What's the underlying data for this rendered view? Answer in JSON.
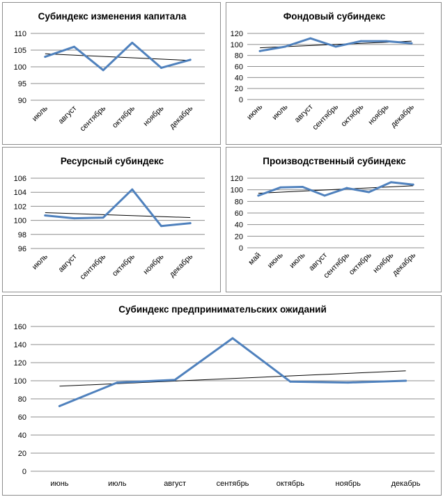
{
  "chart_data": [
    {
      "id": "c1",
      "type": "line",
      "title": "Субиндекс изменения капитала",
      "categories": [
        "июль",
        "август",
        "сентябрь",
        "октябрь",
        "ноябрь",
        "декабрь"
      ],
      "series": [
        {
          "name": "Субиндекс изменения капитала",
          "values": [
            103,
            106,
            99,
            107.2,
            99.7,
            102.1
          ]
        }
      ],
      "trendline": [
        103.9,
        101.9
      ],
      "ylim": [
        90,
        110
      ],
      "yticks": [
        90,
        95,
        100,
        105,
        110
      ],
      "xlabel": "",
      "ylabel": "",
      "grid": true,
      "legend": "none"
    },
    {
      "id": "c2",
      "type": "line",
      "title": "Фондовый субиндекс",
      "categories": [
        "июнь",
        "июль",
        "август",
        "сентябрь",
        "октябрь",
        "ноябрь",
        "декабрь"
      ],
      "series": [
        {
          "name": "Фондовый субиндекс",
          "values": [
            88,
            96,
            111,
            96,
            106,
            106,
            102
          ]
        }
      ],
      "trendline": [
        94,
        106
      ],
      "ylim": [
        0,
        120
      ],
      "yticks": [
        0,
        20,
        40,
        60,
        80,
        100,
        120
      ],
      "xlabel": "",
      "ylabel": "",
      "grid": true,
      "legend": "none"
    },
    {
      "id": "c3",
      "type": "line",
      "title": "Ресурсный субиндекс",
      "categories": [
        "июль",
        "август",
        "сентябрь",
        "октябрь",
        "ноябрь",
        "декабрь"
      ],
      "series": [
        {
          "name": "Ресурсный субиндекс",
          "values": [
            100.7,
            100.3,
            100.4,
            104.4,
            99.2,
            99.6
          ]
        }
      ],
      "trendline": [
        101.1,
        100.4
      ],
      "ylim": [
        96,
        106
      ],
      "yticks": [
        96,
        98,
        100,
        102,
        104,
        106
      ],
      "xlabel": "",
      "ylabel": "",
      "grid": true,
      "legend": "none"
    },
    {
      "id": "c4",
      "type": "line",
      "title": "Производственный субиндекс",
      "categories": [
        "май",
        "июнь",
        "июль",
        "август",
        "сентябрь",
        "октябрь",
        "ноябрь",
        "декабрь"
      ],
      "series": [
        {
          "name": "Производственный субиндекс",
          "values": [
            90,
            104,
            105,
            90,
            103,
            96,
            113,
            109
          ]
        }
      ],
      "trendline": [
        94,
        107
      ],
      "ylim": [
        0,
        120
      ],
      "yticks": [
        0,
        20,
        40,
        60,
        80,
        100,
        120
      ],
      "xlabel": "",
      "ylabel": "",
      "grid": true,
      "legend": "none"
    },
    {
      "id": "c5",
      "type": "line",
      "title": "Субиндекс предпринимательских ожиданий",
      "categories": [
        "июнь",
        "июль",
        "август",
        "сентябрь",
        "октябрь",
        "ноябрь",
        "декабрь"
      ],
      "series": [
        {
          "name": "Субиндекс предпринимательских ожиданий",
          "values": [
            72,
            98,
            101,
            147,
            99,
            98,
            100
          ]
        }
      ],
      "trendline": [
        94,
        111
      ],
      "ylim": [
        0,
        160
      ],
      "yticks": [
        0,
        20,
        40,
        60,
        80,
        100,
        120,
        140,
        160
      ],
      "xlabel": "",
      "ylabel": "",
      "grid": true,
      "legend": "none"
    }
  ],
  "colors": {
    "series": "#4f81bd",
    "trend": "#000000",
    "grid": "#8c8c8c"
  }
}
